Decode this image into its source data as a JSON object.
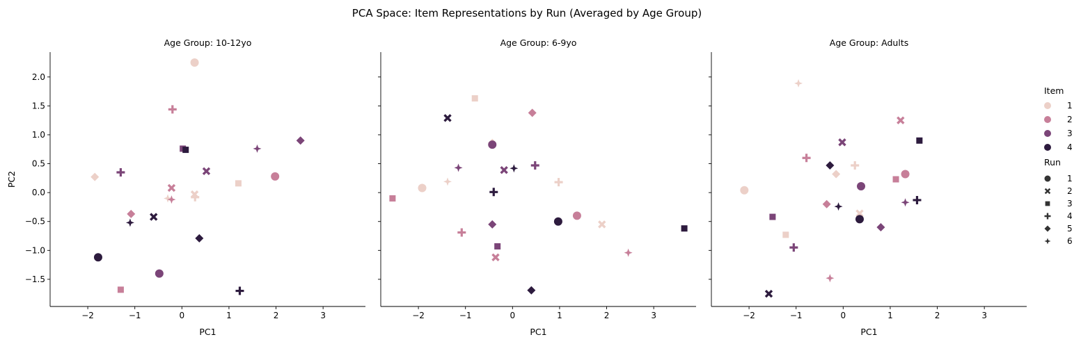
{
  "figure": {
    "title": "PCA Space: Item Representations by Run (Averaged by Age Group)"
  },
  "chart_data": {
    "type": "scatter",
    "title": "PCA Space: Item Representations by Run (Averaged by Age Group)",
    "xlabel": "PC1",
    "ylabel": "PC2",
    "xlim": [
      -2.8,
      3.9
    ],
    "ylim": [
      -1.97,
      2.43
    ],
    "xticks": [
      -2,
      -1,
      0,
      1,
      2,
      3
    ],
    "yticks": [
      -1.5,
      -1.0,
      -0.5,
      0.0,
      0.5,
      1.0,
      1.5,
      2.0
    ],
    "xtick_labels": [
      "−2",
      "−1",
      "0",
      "1",
      "2",
      "3"
    ],
    "ytick_labels": [
      "−1.5",
      "−1.0",
      "−0.5",
      "0.0",
      "0.5",
      "1.0",
      "1.5",
      "2.0"
    ],
    "sharey": true,
    "grid": false,
    "hue": {
      "title": "Item",
      "levels": [
        "1",
        "2",
        "3",
        "4"
      ],
      "colors": [
        "#ecd0c8",
        "#c77f99",
        "#7b4578",
        "#2d1b3e"
      ]
    },
    "style": {
      "title": "Run",
      "levels": [
        "1",
        "2",
        "3",
        "4",
        "5",
        "6"
      ],
      "markers": [
        "circle",
        "x",
        "square",
        "plus",
        "diamond",
        "star4"
      ]
    },
    "legend_position": "right",
    "facets": [
      {
        "title": "Age Group: 10-12yo",
        "points": [
          {
            "item": 1,
            "run": 1,
            "x": 0.27,
            "y": 2.25
          },
          {
            "item": 1,
            "run": 2,
            "x": 0.27,
            "y": -0.03
          },
          {
            "item": 1,
            "run": 3,
            "x": 1.2,
            "y": 0.16
          },
          {
            "item": 1,
            "run": 4,
            "x": 0.28,
            "y": -0.08
          },
          {
            "item": 1,
            "run": 5,
            "x": -1.85,
            "y": 0.27
          },
          {
            "item": 1,
            "run": 6,
            "x": -0.3,
            "y": -0.1
          },
          {
            "item": 2,
            "run": 1,
            "x": 1.98,
            "y": 0.28
          },
          {
            "item": 2,
            "run": 2,
            "x": -0.22,
            "y": 0.08
          },
          {
            "item": 2,
            "run": 3,
            "x": -1.3,
            "y": -1.68
          },
          {
            "item": 2,
            "run": 4,
            "x": -0.2,
            "y": 1.44
          },
          {
            "item": 2,
            "run": 5,
            "x": -1.08,
            "y": -0.37
          },
          {
            "item": 2,
            "run": 6,
            "x": -0.22,
            "y": -0.12
          },
          {
            "item": 3,
            "run": 1,
            "x": -0.48,
            "y": -1.4
          },
          {
            "item": 3,
            "run": 2,
            "x": 0.52,
            "y": 0.37
          },
          {
            "item": 3,
            "run": 3,
            "x": 0.02,
            "y": 0.76
          },
          {
            "item": 3,
            "run": 4,
            "x": -1.3,
            "y": 0.35
          },
          {
            "item": 3,
            "run": 5,
            "x": 2.52,
            "y": 0.9
          },
          {
            "item": 3,
            "run": 6,
            "x": 1.6,
            "y": 0.76
          },
          {
            "item": 4,
            "run": 1,
            "x": -1.78,
            "y": -1.12
          },
          {
            "item": 4,
            "run": 2,
            "x": -0.6,
            "y": -0.42
          },
          {
            "item": 4,
            "run": 3,
            "x": 0.08,
            "y": 0.74
          },
          {
            "item": 4,
            "run": 4,
            "x": 1.23,
            "y": -1.7
          },
          {
            "item": 4,
            "run": 5,
            "x": 0.37,
            "y": -0.79
          },
          {
            "item": 4,
            "run": 6,
            "x": -1.1,
            "y": -0.52
          }
        ]
      },
      {
        "title": "Age Group: 6-9yo",
        "points": [
          {
            "item": 1,
            "run": 1,
            "x": -1.92,
            "y": 0.08
          },
          {
            "item": 1,
            "run": 2,
            "x": 1.9,
            "y": -0.55
          },
          {
            "item": 1,
            "run": 3,
            "x": -0.8,
            "y": 1.63
          },
          {
            "item": 1,
            "run": 4,
            "x": 0.98,
            "y": 0.18
          },
          {
            "item": 1,
            "run": 5,
            "x": -0.43,
            "y": 0.86
          },
          {
            "item": 1,
            "run": 6,
            "x": -1.38,
            "y": 0.19
          },
          {
            "item": 2,
            "run": 1,
            "x": 1.37,
            "y": -0.4
          },
          {
            "item": 2,
            "run": 2,
            "x": -0.36,
            "y": -1.12
          },
          {
            "item": 2,
            "run": 3,
            "x": -2.55,
            "y": -0.1
          },
          {
            "item": 2,
            "run": 4,
            "x": -1.08,
            "y": -0.69
          },
          {
            "item": 2,
            "run": 5,
            "x": 0.42,
            "y": 1.38
          },
          {
            "item": 2,
            "run": 6,
            "x": 2.46,
            "y": -1.04
          },
          {
            "item": 3,
            "run": 1,
            "x": -0.43,
            "y": 0.83
          },
          {
            "item": 3,
            "run": 2,
            "x": -0.18,
            "y": 0.39
          },
          {
            "item": 3,
            "run": 3,
            "x": -0.32,
            "y": -0.93
          },
          {
            "item": 3,
            "run": 4,
            "x": 0.48,
            "y": 0.47
          },
          {
            "item": 3,
            "run": 5,
            "x": -0.43,
            "y": -0.55
          },
          {
            "item": 3,
            "run": 6,
            "x": -1.15,
            "y": 0.43
          },
          {
            "item": 4,
            "run": 1,
            "x": 0.97,
            "y": -0.5
          },
          {
            "item": 4,
            "run": 2,
            "x": -1.38,
            "y": 1.29
          },
          {
            "item": 4,
            "run": 3,
            "x": 3.65,
            "y": -0.62
          },
          {
            "item": 4,
            "run": 4,
            "x": -0.4,
            "y": 0.01
          },
          {
            "item": 4,
            "run": 5,
            "x": 0.4,
            "y": -1.69
          },
          {
            "item": 4,
            "run": 6,
            "x": 0.03,
            "y": 0.42
          }
        ]
      },
      {
        "title": "Age Group: Adults",
        "points": [
          {
            "item": 1,
            "run": 1,
            "x": -2.1,
            "y": 0.04
          },
          {
            "item": 1,
            "run": 2,
            "x": 0.35,
            "y": -0.36
          },
          {
            "item": 1,
            "run": 3,
            "x": -1.22,
            "y": -0.73
          },
          {
            "item": 1,
            "run": 4,
            "x": 0.25,
            "y": 0.47
          },
          {
            "item": 1,
            "run": 5,
            "x": -0.15,
            "y": 0.32
          },
          {
            "item": 1,
            "run": 6,
            "x": -0.95,
            "y": 1.89
          },
          {
            "item": 2,
            "run": 1,
            "x": 1.32,
            "y": 0.32
          },
          {
            "item": 2,
            "run": 2,
            "x": 1.22,
            "y": 1.25
          },
          {
            "item": 2,
            "run": 3,
            "x": 1.12,
            "y": 0.23
          },
          {
            "item": 2,
            "run": 4,
            "x": -0.78,
            "y": 0.6
          },
          {
            "item": 2,
            "run": 5,
            "x": -0.35,
            "y": -0.2
          },
          {
            "item": 2,
            "run": 6,
            "x": -0.28,
            "y": -1.48
          },
          {
            "item": 3,
            "run": 1,
            "x": 0.38,
            "y": 0.11
          },
          {
            "item": 3,
            "run": 2,
            "x": -0.02,
            "y": 0.87
          },
          {
            "item": 3,
            "run": 3,
            "x": -1.5,
            "y": -0.42
          },
          {
            "item": 3,
            "run": 4,
            "x": -1.05,
            "y": -0.95
          },
          {
            "item": 3,
            "run": 5,
            "x": 0.8,
            "y": -0.6
          },
          {
            "item": 3,
            "run": 6,
            "x": 1.32,
            "y": -0.17
          },
          {
            "item": 4,
            "run": 1,
            "x": 0.35,
            "y": -0.46
          },
          {
            "item": 4,
            "run": 2,
            "x": -1.58,
            "y": -1.75
          },
          {
            "item": 4,
            "run": 3,
            "x": 1.62,
            "y": 0.9
          },
          {
            "item": 4,
            "run": 4,
            "x": 1.57,
            "y": -0.13
          },
          {
            "item": 4,
            "run": 5,
            "x": -0.28,
            "y": 0.47
          },
          {
            "item": 4,
            "run": 6,
            "x": -0.1,
            "y": -0.24
          }
        ]
      }
    ]
  }
}
